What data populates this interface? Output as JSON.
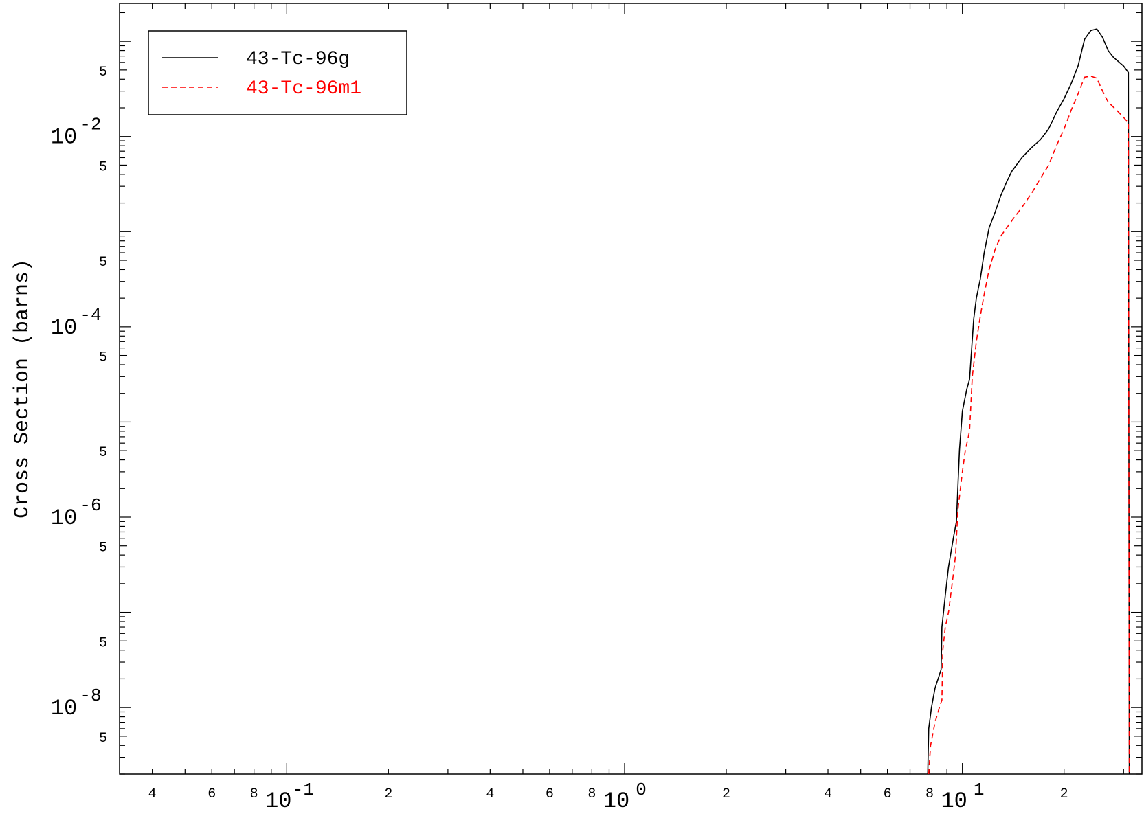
{
  "chart_data": {
    "type": "line",
    "title": "",
    "xlabel": "",
    "ylabel": "Cross Section (barns)",
    "x_scale": "log",
    "y_scale": "log",
    "xlim": [
      0.032,
      34
    ],
    "ylim": [
      2e-09,
      0.25
    ],
    "grid": false,
    "legend_position": "top-left",
    "x_ticks": {
      "decades": [
        {
          "base": "10",
          "exp": "-1",
          "value": 0.1
        },
        {
          "base": "10",
          "exp": "0",
          "value": 1
        },
        {
          "base": "10",
          "exp": "1",
          "value": 10
        }
      ],
      "labeled_minor": [
        {
          "label": "4",
          "value": 0.04
        },
        {
          "label": "6",
          "value": 0.06
        },
        {
          "label": "8",
          "value": 0.08
        },
        {
          "label": "2",
          "value": 0.2
        },
        {
          "label": "4",
          "value": 0.4
        },
        {
          "label": "6",
          "value": 0.6
        },
        {
          "label": "8",
          "value": 0.8
        },
        {
          "label": "2",
          "value": 2
        },
        {
          "label": "4",
          "value": 4
        },
        {
          "label": "6",
          "value": 6
        },
        {
          "label": "8",
          "value": 8
        },
        {
          "label": "2",
          "value": 20
        }
      ]
    },
    "y_ticks": {
      "decades": [
        {
          "base": "10",
          "exp": "-2",
          "value": 0.01
        },
        {
          "base": "10",
          "exp": "-4",
          "value": 0.0001
        },
        {
          "base": "10",
          "exp": "-6",
          "value": 1e-06
        },
        {
          "base": "10",
          "exp": "-8",
          "value": 1e-08
        }
      ],
      "five_labels": [
        {
          "label": "5",
          "value": 0.05
        },
        {
          "label": "5",
          "value": 0.005
        },
        {
          "label": "5",
          "value": 0.0005
        },
        {
          "label": "5",
          "value": 5e-05
        },
        {
          "label": "5",
          "value": 5e-06
        },
        {
          "label": "5",
          "value": 5e-07
        },
        {
          "label": "5",
          "value": 5e-08
        },
        {
          "label": "5",
          "value": 5e-09
        }
      ]
    },
    "series": [
      {
        "name": "43-Tc-96g",
        "color": "#000000",
        "dash": "solid",
        "points": [
          [
            7.9,
            2e-09
          ],
          [
            7.95,
            6e-09
          ],
          [
            8.1,
            1e-08
          ],
          [
            8.3,
            1.6e-08
          ],
          [
            8.55,
            2.2e-08
          ],
          [
            8.65,
            2.5e-08
          ],
          [
            8.7,
            7e-08
          ],
          [
            8.9,
            1.5e-07
          ],
          [
            9.1,
            3e-07
          ],
          [
            9.4,
            6e-07
          ],
          [
            9.6,
            9e-07
          ],
          [
            9.8,
            5e-06
          ],
          [
            10.0,
            1.3e-05
          ],
          [
            10.3,
            2.2e-05
          ],
          [
            10.5,
            2.8e-05
          ],
          [
            10.8,
            0.00012
          ],
          [
            11.0,
            0.0002
          ],
          [
            11.3,
            0.00032
          ],
          [
            11.6,
            0.0006
          ],
          [
            12.0,
            0.0011
          ],
          [
            12.5,
            0.0016
          ],
          [
            13.0,
            0.0024
          ],
          [
            13.5,
            0.0033
          ],
          [
            14.0,
            0.0043
          ],
          [
            15.0,
            0.006
          ],
          [
            16.0,
            0.0076
          ],
          [
            17.0,
            0.0092
          ],
          [
            18.0,
            0.012
          ],
          [
            19.0,
            0.018
          ],
          [
            20.0,
            0.025
          ],
          [
            21.0,
            0.036
          ],
          [
            22.0,
            0.055
          ],
          [
            23.0,
            0.105
          ],
          [
            24.0,
            0.13
          ],
          [
            25.0,
            0.135
          ],
          [
            26.0,
            0.11
          ],
          [
            27.0,
            0.08
          ],
          [
            28.0,
            0.068
          ],
          [
            30.0,
            0.055
          ],
          [
            31.0,
            0.047
          ],
          [
            31.2,
            2e-09
          ]
        ]
      },
      {
        "name": "43-Tc-96m1",
        "color": "#ff0000",
        "dash": "dashed",
        "points": [
          [
            7.95,
            2e-09
          ],
          [
            8.05,
            4e-09
          ],
          [
            8.3,
            7e-09
          ],
          [
            8.55,
            1e-08
          ],
          [
            8.7,
            1.2e-08
          ],
          [
            8.75,
            4e-08
          ],
          [
            8.9,
            7e-08
          ],
          [
            9.1,
            1e-07
          ],
          [
            9.4,
            2.5e-07
          ],
          [
            9.55,
            4e-07
          ],
          [
            9.7,
            1.2e-06
          ],
          [
            10.0,
            3e-06
          ],
          [
            10.2,
            5e-06
          ],
          [
            10.5,
            8e-06
          ],
          [
            10.7,
            3e-05
          ],
          [
            11.0,
            7e-05
          ],
          [
            11.3,
            0.00013
          ],
          [
            11.6,
            0.00022
          ],
          [
            12.0,
            0.0004
          ],
          [
            12.5,
            0.00065
          ],
          [
            13.0,
            0.0009
          ],
          [
            14.0,
            0.0013
          ],
          [
            15.0,
            0.0018
          ],
          [
            16.0,
            0.0025
          ],
          [
            17.0,
            0.0036
          ],
          [
            18.0,
            0.005
          ],
          [
            19.0,
            0.008
          ],
          [
            20.0,
            0.012
          ],
          [
            21.0,
            0.019
          ],
          [
            22.0,
            0.028
          ],
          [
            23.0,
            0.042
          ],
          [
            24.0,
            0.043
          ],
          [
            25.0,
            0.041
          ],
          [
            26.0,
            0.03
          ],
          [
            27.0,
            0.023
          ],
          [
            29.0,
            0.018
          ],
          [
            31.0,
            0.014
          ],
          [
            31.2,
            2e-09
          ]
        ]
      }
    ]
  }
}
